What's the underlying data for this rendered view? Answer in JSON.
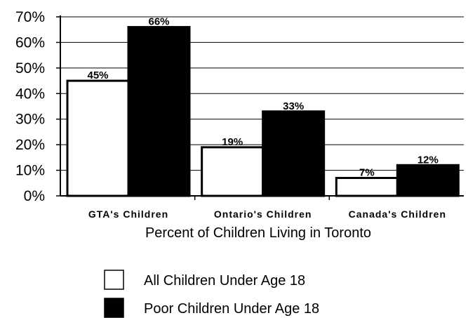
{
  "chart_data": {
    "type": "bar",
    "xlabel": "Percent of Children Living in Toronto",
    "ylabel": "",
    "ylim": [
      0,
      70
    ],
    "yticks": [
      "0%",
      "10%",
      "20%",
      "30%",
      "40%",
      "50%",
      "60%",
      "70%"
    ],
    "categories": [
      "GTA's Children",
      "Ontario's Children",
      "Canada's Children"
    ],
    "series": [
      {
        "name": "All Children Under Age 18",
        "values": [
          45,
          19,
          7
        ],
        "labels": [
          "45%",
          "19%",
          "7%"
        ],
        "color": "#ffffff"
      },
      {
        "name": "Poor Children Under Age 18",
        "values": [
          66,
          33,
          12
        ],
        "labels": [
          "66%",
          "33%",
          "12%"
        ],
        "color": "#000000"
      }
    ],
    "grid": true,
    "legend_position": "bottom"
  }
}
